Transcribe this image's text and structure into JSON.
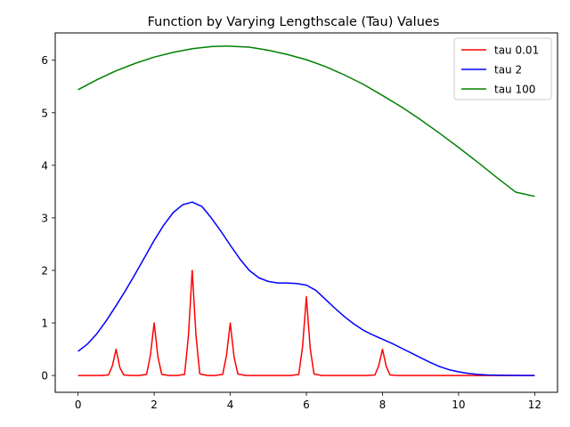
{
  "chart_data": {
    "type": "line",
    "title": "Function by Varying Lengthscale (Tau) Values",
    "xlabel": "",
    "ylabel": "",
    "xlim": [
      -0.6,
      12.6
    ],
    "ylim": [
      -0.32,
      6.52
    ],
    "x_ticks": [
      0,
      2,
      4,
      6,
      8,
      10,
      12
    ],
    "x_tick_labels": [
      "0",
      "2",
      "4",
      "6",
      "8",
      "10",
      "12"
    ],
    "y_ticks": [
      0,
      1,
      2,
      3,
      4,
      5,
      6
    ],
    "y_tick_labels": [
      "0",
      "1",
      "2",
      "3",
      "4",
      "5",
      "6"
    ],
    "grid": false,
    "legend_position": "top-right",
    "series": [
      {
        "name": "tau 0.01",
        "color": "#ff0000",
        "x": [
          0,
          0.2,
          0.4,
          0.6,
          0.8,
          0.9,
          1.0,
          1.1,
          1.2,
          1.4,
          1.6,
          1.8,
          1.9,
          2.0,
          2.1,
          2.2,
          2.4,
          2.6,
          2.8,
          2.9,
          3.0,
          3.1,
          3.2,
          3.4,
          3.6,
          3.8,
          3.9,
          4.0,
          4.1,
          4.2,
          4.4,
          4.6,
          4.8,
          5.0,
          5.2,
          5.4,
          5.6,
          5.8,
          5.9,
          6.0,
          6.1,
          6.2,
          6.4,
          6.6,
          6.8,
          7.0,
          7.2,
          7.4,
          7.6,
          7.8,
          7.9,
          8.0,
          8.1,
          8.2,
          8.4,
          8.6,
          8.8,
          9.0,
          9.5,
          10.0,
          10.5,
          11.0,
          11.5,
          12.0
        ],
        "y": [
          0,
          0,
          0,
          0,
          0.01,
          0.18,
          0.5,
          0.15,
          0.01,
          0,
          0,
          0.02,
          0.38,
          1.0,
          0.35,
          0.02,
          0,
          0,
          0.02,
          0.75,
          2.0,
          0.75,
          0.03,
          0,
          0,
          0.02,
          0.38,
          1.0,
          0.35,
          0.03,
          0,
          0,
          0,
          0,
          0,
          0,
          0,
          0.02,
          0.55,
          1.5,
          0.52,
          0.03,
          0,
          0,
          0,
          0,
          0,
          0,
          0,
          0.01,
          0.18,
          0.5,
          0.17,
          0.01,
          0,
          0,
          0,
          0,
          0,
          0,
          0,
          0,
          0,
          0
        ]
      },
      {
        "name": "tau 2",
        "color": "#0000ff",
        "x": [
          0,
          0.25,
          0.5,
          0.75,
          1.0,
          1.25,
          1.5,
          1.75,
          2.0,
          2.25,
          2.5,
          2.75,
          3.0,
          3.25,
          3.5,
          3.75,
          4.0,
          4.25,
          4.5,
          4.75,
          5.0,
          5.25,
          5.5,
          5.75,
          6.0,
          6.25,
          6.5,
          6.75,
          7.0,
          7.25,
          7.5,
          7.75,
          8.0,
          8.25,
          8.5,
          8.75,
          9.0,
          9.25,
          9.5,
          9.75,
          10.0,
          10.25,
          10.5,
          10.75,
          11.0,
          11.5,
          12.0
        ],
        "y": [
          0.46,
          0.6,
          0.8,
          1.05,
          1.33,
          1.62,
          1.93,
          2.25,
          2.57,
          2.86,
          3.1,
          3.25,
          3.3,
          3.22,
          3.0,
          2.75,
          2.48,
          2.22,
          2.0,
          1.86,
          1.79,
          1.76,
          1.76,
          1.75,
          1.72,
          1.62,
          1.45,
          1.28,
          1.12,
          0.98,
          0.86,
          0.77,
          0.69,
          0.61,
          0.52,
          0.43,
          0.34,
          0.25,
          0.17,
          0.11,
          0.07,
          0.04,
          0.02,
          0.01,
          0.005,
          0.001,
          0.0
        ]
      },
      {
        "name": "tau 100",
        "color": "#008000",
        "x": [
          0,
          0.5,
          1.0,
          1.5,
          2.0,
          2.5,
          3.0,
          3.5,
          3.9,
          4.5,
          5.0,
          5.5,
          6.0,
          6.5,
          7.0,
          7.5,
          8.0,
          8.5,
          9.0,
          9.5,
          10.0,
          10.5,
          11.0,
          11.5,
          12.0
        ],
        "y": [
          5.44,
          5.63,
          5.8,
          5.94,
          6.06,
          6.15,
          6.22,
          6.26,
          6.27,
          6.25,
          6.19,
          6.11,
          6.01,
          5.88,
          5.72,
          5.54,
          5.33,
          5.11,
          4.87,
          4.61,
          4.34,
          4.06,
          3.77,
          3.49,
          3.41
        ]
      }
    ]
  }
}
